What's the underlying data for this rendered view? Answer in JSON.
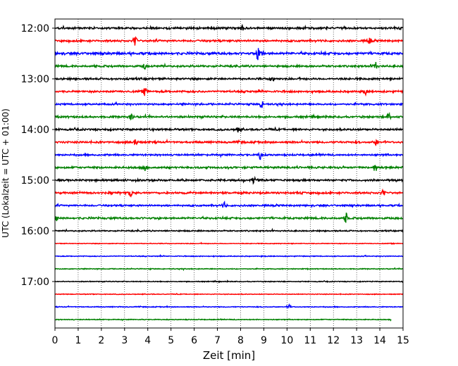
{
  "chart_data": {
    "type": "line",
    "title": "",
    "xlabel": "Zeit  [min]",
    "ylabel": "UTC (Lokalzeit = UTC + 01:00)",
    "xlim": [
      0,
      15
    ],
    "x_ticks": [
      "0",
      "1",
      "2",
      "3",
      "4",
      "5",
      "6",
      "7",
      "8",
      "9",
      "10",
      "11",
      "12",
      "13",
      "14",
      "15"
    ],
    "y_ticks": [
      "12:00",
      "13:00",
      "14:00",
      "15:00",
      "16:00",
      "17:00"
    ],
    "grid": {
      "x": "dotted",
      "y": false
    },
    "trace_interval_min": 15,
    "colors": [
      "#000000",
      "#ff0000",
      "#0000ff",
      "#008000"
    ],
    "traces": [
      {
        "start": "12:00",
        "color": "#000000",
        "end": 15,
        "noise": 0.9,
        "events": [
          [
            8.1,
            0.9
          ]
        ]
      },
      {
        "start": "12:15",
        "color": "#ff0000",
        "end": 15,
        "noise": 0.9,
        "events": [
          [
            3.45,
            1.0
          ],
          [
            13.55,
            0.6
          ]
        ]
      },
      {
        "start": "12:30",
        "color": "#0000ff",
        "end": 15,
        "noise": 1.1,
        "events": [
          [
            8.75,
            1.2
          ],
          [
            8.9,
            0.8
          ]
        ]
      },
      {
        "start": "12:45",
        "color": "#008000",
        "end": 15,
        "noise": 0.9,
        "events": [
          [
            3.85,
            0.6
          ],
          [
            13.8,
            1.0
          ]
        ]
      },
      {
        "start": "13:00",
        "color": "#000000",
        "end": 15,
        "noise": 0.9,
        "events": [
          [
            9.35,
            0.7
          ]
        ]
      },
      {
        "start": "13:15",
        "color": "#ff0000",
        "end": 15,
        "noise": 0.9,
        "events": [
          [
            3.9,
            1.0
          ],
          [
            13.4,
            0.6
          ]
        ]
      },
      {
        "start": "13:30",
        "color": "#0000ff",
        "end": 15,
        "noise": 0.8,
        "events": [
          [
            8.9,
            0.9
          ]
        ]
      },
      {
        "start": "13:45",
        "color": "#008000",
        "end": 15,
        "noise": 0.9,
        "events": [
          [
            3.3,
            0.6
          ],
          [
            14.4,
            1.0
          ]
        ]
      },
      {
        "start": "14:00",
        "color": "#000000",
        "end": 15,
        "noise": 0.9,
        "events": [
          [
            7.9,
            0.7
          ]
        ]
      },
      {
        "start": "14:15",
        "color": "#ff0000",
        "end": 15,
        "noise": 0.9,
        "events": [
          [
            3.5,
            0.8
          ],
          [
            13.85,
            0.6
          ]
        ]
      },
      {
        "start": "14:30",
        "color": "#0000ff",
        "end": 15,
        "noise": 0.8,
        "events": [
          [
            8.85,
            1.0
          ]
        ]
      },
      {
        "start": "14:45",
        "color": "#008000",
        "end": 15,
        "noise": 0.9,
        "events": [
          [
            3.9,
            0.6
          ],
          [
            13.8,
            1.0
          ]
        ]
      },
      {
        "start": "15:00",
        "color": "#000000",
        "end": 15,
        "noise": 0.9,
        "events": [
          [
            8.55,
            0.7
          ]
        ]
      },
      {
        "start": "15:15",
        "color": "#ff0000",
        "end": 15,
        "noise": 0.9,
        "events": [
          [
            3.25,
            0.8
          ],
          [
            14.15,
            0.6
          ]
        ]
      },
      {
        "start": "15:30",
        "color": "#0000ff",
        "end": 15,
        "noise": 0.8,
        "events": [
          [
            7.3,
            0.7
          ]
        ]
      },
      {
        "start": "15:45",
        "color": "#008000",
        "end": 15,
        "noise": 0.9,
        "events": [
          [
            0.05,
            0.5
          ],
          [
            12.55,
            1.1
          ]
        ]
      },
      {
        "start": "16:00",
        "color": "#000000",
        "end": 15,
        "noise": 0.6,
        "events": []
      },
      {
        "start": "16:15",
        "color": "#ff0000",
        "end": 15,
        "noise": 0.35,
        "events": []
      },
      {
        "start": "16:30",
        "color": "#0000ff",
        "end": 15,
        "noise": 0.4,
        "events": []
      },
      {
        "start": "16:45",
        "color": "#008000",
        "end": 15,
        "noise": 0.4,
        "events": []
      },
      {
        "start": "17:00",
        "color": "#000000",
        "end": 15,
        "noise": 0.4,
        "events": []
      },
      {
        "start": "17:15",
        "color": "#ff0000",
        "end": 15,
        "noise": 0.35,
        "events": []
      },
      {
        "start": "17:30",
        "color": "#0000ff",
        "end": 15,
        "noise": 0.4,
        "events": [
          [
            10.1,
            0.5
          ]
        ]
      },
      {
        "start": "17:45",
        "color": "#008000",
        "end": 14.5,
        "noise": 0.4,
        "events": []
      }
    ]
  }
}
